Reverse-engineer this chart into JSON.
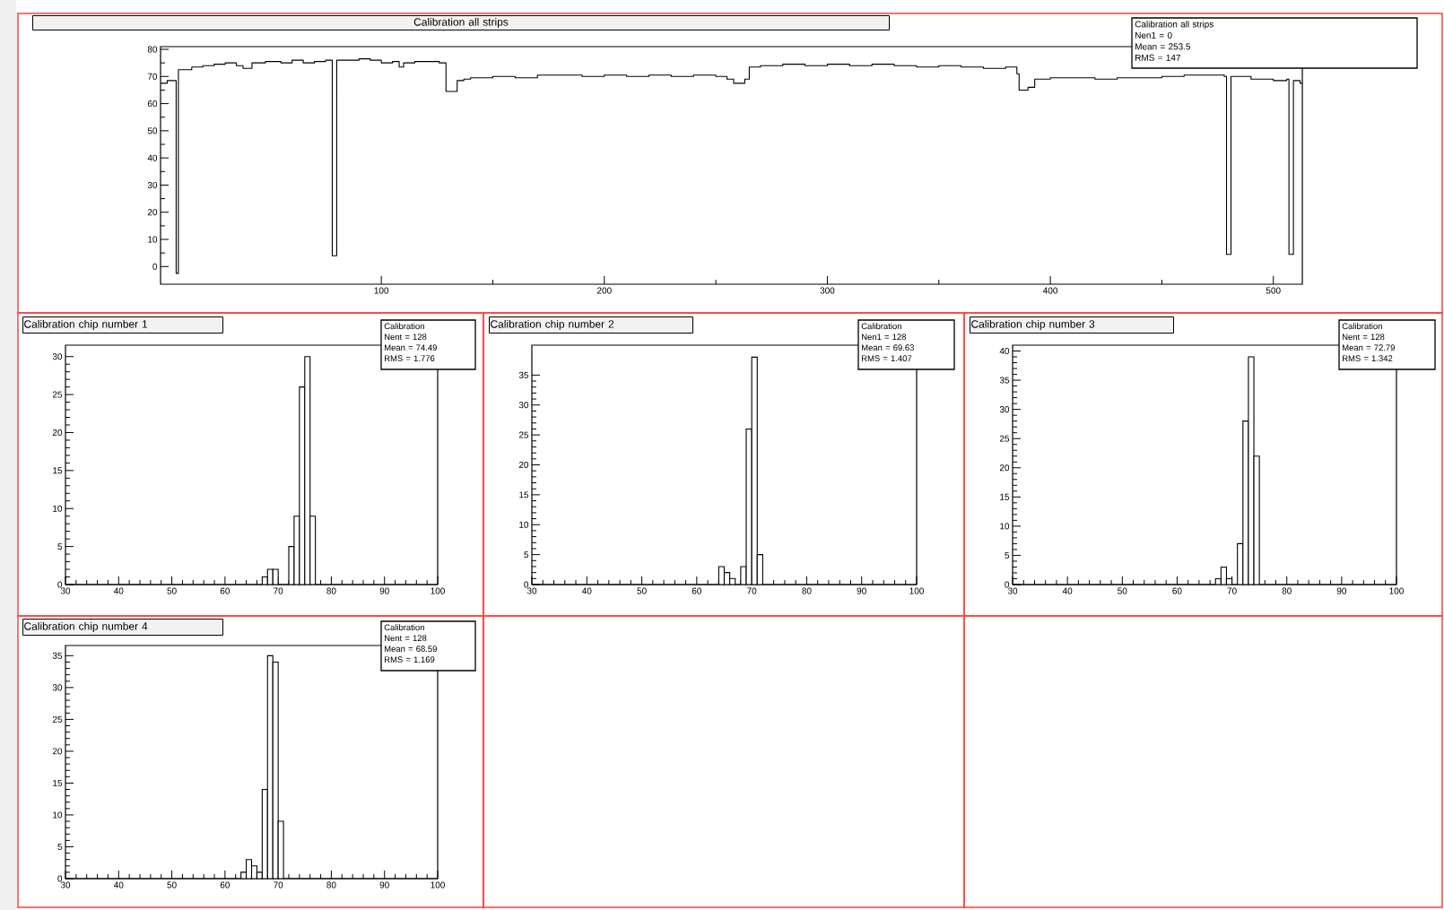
{
  "chart_data": [
    {
      "type": "step",
      "title": "Calibration all strips",
      "color": "#000000",
      "x": [
        1,
        4,
        8,
        9,
        15,
        20,
        25,
        30,
        35,
        38,
        42,
        48,
        55,
        60,
        65,
        70,
        75,
        78,
        80,
        85,
        90,
        95,
        100,
        105,
        108,
        110,
        115,
        120,
        126,
        129,
        134,
        137,
        140,
        150,
        160,
        170,
        180,
        190,
        200,
        210,
        220,
        230,
        240,
        250,
        255,
        258,
        263,
        265,
        270,
        280,
        290,
        300,
        310,
        320,
        330,
        340,
        350,
        360,
        370,
        380,
        385,
        386,
        390,
        393,
        400,
        410,
        420,
        430,
        440,
        450,
        460,
        470,
        478,
        479,
        481,
        490,
        500,
        506,
        507,
        509,
        512
      ],
      "values": [
        67.5,
        68.5,
        -2.5,
        72.5,
        73.5,
        74,
        74.5,
        75,
        74,
        73,
        75,
        75.5,
        75,
        76,
        75,
        75.5,
        76,
        4,
        76,
        76,
        76.5,
        76,
        75,
        75.5,
        73.5,
        75,
        75.5,
        75.5,
        75,
        64.5,
        68.5,
        69,
        69.5,
        70,
        69.5,
        70.5,
        70.5,
        70,
        70.5,
        70,
        70.5,
        70,
        70.5,
        70,
        69,
        67.5,
        69,
        73.5,
        74,
        74.5,
        74,
        74.5,
        74,
        74.5,
        74,
        73.5,
        74,
        73.5,
        73,
        73.5,
        71,
        65,
        66,
        69,
        69.5,
        69.5,
        69,
        69.5,
        69.5,
        70,
        70.5,
        70.5,
        70,
        4.5,
        70,
        69,
        68.5,
        69,
        4.5,
        68.5,
        67.5
      ],
      "xlim": [
        1,
        513
      ],
      "ylim": [
        -6.5,
        81
      ],
      "xticks": [
        100,
        200,
        300,
        400,
        500
      ],
      "yticks": [
        0,
        10,
        20,
        30,
        40,
        50,
        60,
        70,
        80
      ],
      "annotations": [
        "Calibration all strips",
        "Nen1 = 0",
        "Mean =  253.5",
        "RMS  =   147"
      ]
    },
    {
      "type": "histogram",
      "title": "Calibration chip number 1",
      "color": "#000000",
      "bins": [
        30,
        31,
        32,
        33,
        34,
        35,
        36,
        37,
        38,
        39,
        40,
        41,
        42,
        43,
        44,
        45,
        46,
        47,
        48,
        49,
        50,
        51,
        52,
        53,
        54,
        55,
        56,
        57,
        58,
        59,
        60,
        61,
        62,
        63,
        64,
        65,
        66,
        67,
        68,
        69,
        70,
        71,
        72,
        73,
        74,
        75,
        76,
        77,
        78,
        79,
        80,
        81,
        82,
        83,
        84,
        85,
        86,
        87,
        88,
        89,
        90,
        91,
        92,
        93,
        94,
        95,
        96,
        97,
        98,
        99,
        100
      ],
      "values": [
        0,
        0,
        0,
        0,
        0,
        0,
        0,
        0,
        0,
        0,
        0,
        0,
        0,
        0,
        0,
        0,
        0,
        0,
        0,
        0,
        0,
        0,
        0,
        0,
        0,
        0,
        0,
        0,
        0,
        0,
        0,
        0,
        0,
        0,
        0,
        0,
        0,
        1,
        2,
        2,
        0,
        0,
        5,
        9,
        26,
        30,
        9,
        0,
        0,
        0,
        0,
        0,
        0,
        0,
        0,
        0,
        0,
        0,
        0,
        0,
        0,
        0,
        0,
        0,
        0,
        0,
        0,
        0,
        0,
        0
      ],
      "xlim": [
        30,
        100
      ],
      "ylim": [
        0,
        31.5
      ],
      "xticks": [
        30,
        40,
        50,
        60,
        70,
        80,
        90,
        100
      ],
      "yticks": [
        0,
        5,
        10,
        15,
        20,
        25,
        30
      ],
      "annotations": [
        "Calibration",
        "Nent = 128",
        "Mean = 74.49",
        "RMS = 1.776"
      ]
    },
    {
      "type": "histogram",
      "title": "Calibration chip number 2",
      "color": "#000000",
      "bins": [
        30,
        31,
        32,
        33,
        34,
        35,
        36,
        37,
        38,
        39,
        40,
        41,
        42,
        43,
        44,
        45,
        46,
        47,
        48,
        49,
        50,
        51,
        52,
        53,
        54,
        55,
        56,
        57,
        58,
        59,
        60,
        61,
        62,
        63,
        64,
        65,
        66,
        67,
        68,
        69,
        70,
        71,
        72,
        73,
        74,
        75,
        76,
        77,
        78,
        79,
        80,
        81,
        82,
        83,
        84,
        85,
        86,
        87,
        88,
        89,
        90,
        91,
        92,
        93,
        94,
        95,
        96,
        97,
        98,
        99,
        100
      ],
      "values": [
        0,
        0,
        0,
        0,
        0,
        0,
        0,
        0,
        0,
        0,
        0,
        0,
        0,
        0,
        0,
        0,
        0,
        0,
        0,
        0,
        0,
        0,
        0,
        0,
        0,
        0,
        0,
        0,
        0,
        0,
        0,
        0,
        0,
        0,
        3,
        2,
        1,
        0,
        3,
        26,
        38,
        5,
        0,
        0,
        0,
        0,
        0,
        0,
        0,
        0,
        0,
        0,
        0,
        0,
        0,
        0,
        0,
        0,
        0,
        0,
        0,
        0,
        0,
        0,
        0,
        0,
        0,
        0,
        0,
        0
      ],
      "xlim": [
        30,
        100
      ],
      "ylim": [
        0,
        40
      ],
      "xticks": [
        30,
        40,
        50,
        60,
        70,
        80,
        90,
        100
      ],
      "yticks": [
        0,
        5,
        10,
        15,
        20,
        25,
        30,
        35
      ],
      "annotations": [
        "Calibration",
        "Nen1 = 128",
        "Mean =  69.63",
        "RMS  =  1.407"
      ]
    },
    {
      "type": "histogram",
      "title": "Calibration chip number 3",
      "color": "#000000",
      "bins": [
        30,
        31,
        32,
        33,
        34,
        35,
        36,
        37,
        38,
        39,
        40,
        41,
        42,
        43,
        44,
        45,
        46,
        47,
        48,
        49,
        50,
        51,
        52,
        53,
        54,
        55,
        56,
        57,
        58,
        59,
        60,
        61,
        62,
        63,
        64,
        65,
        66,
        67,
        68,
        69,
        70,
        71,
        72,
        73,
        74,
        75,
        76,
        77,
        78,
        79,
        80,
        81,
        82,
        83,
        84,
        85,
        86,
        87,
        88,
        89,
        90,
        91,
        92,
        93,
        94,
        95,
        96,
        97,
        98,
        99,
        100
      ],
      "values": [
        0,
        0,
        0,
        0,
        0,
        0,
        0,
        0,
        0,
        0,
        0,
        0,
        0,
        0,
        0,
        0,
        0,
        0,
        0,
        0,
        0,
        0,
        0,
        0,
        0,
        0,
        0,
        0,
        0,
        0,
        0,
        0,
        0,
        0,
        0,
        0,
        0,
        1,
        3,
        1,
        0,
        7,
        28,
        39,
        22,
        0,
        0,
        0,
        0,
        0,
        0,
        0,
        0,
        0,
        0,
        0,
        0,
        0,
        0,
        0,
        0,
        0,
        0,
        0,
        0,
        0,
        0,
        0,
        0,
        0
      ],
      "xlim": [
        30,
        100
      ],
      "ylim": [
        0,
        41
      ],
      "xticks": [
        30,
        40,
        50,
        60,
        70,
        80,
        90,
        100
      ],
      "yticks": [
        0,
        5,
        10,
        15,
        20,
        25,
        30,
        35,
        40
      ],
      "annotations": [
        "Calibration",
        "Nent = 128",
        "Mean =  72.79",
        "RMS  =  1.342"
      ]
    },
    {
      "type": "histogram",
      "title": "Calibration chip number 4",
      "color": "#000000",
      "bins": [
        30,
        31,
        32,
        33,
        34,
        35,
        36,
        37,
        38,
        39,
        40,
        41,
        42,
        43,
        44,
        45,
        46,
        47,
        48,
        49,
        50,
        51,
        52,
        53,
        54,
        55,
        56,
        57,
        58,
        59,
        60,
        61,
        62,
        63,
        64,
        65,
        66,
        67,
        68,
        69,
        70,
        71,
        72,
        73,
        74,
        75,
        76,
        77,
        78,
        79,
        80,
        81,
        82,
        83,
        84,
        85,
        86,
        87,
        88,
        89,
        90,
        91,
        92,
        93,
        94,
        95,
        96,
        97,
        98,
        99,
        100
      ],
      "values": [
        0,
        0,
        0,
        0,
        0,
        0,
        0,
        0,
        0,
        0,
        0,
        0,
        0,
        0,
        0,
        0,
        0,
        0,
        0,
        0,
        0,
        0,
        0,
        0,
        0,
        0,
        0,
        0,
        0,
        0,
        0,
        0,
        0,
        1,
        3,
        2,
        1,
        14,
        35,
        34,
        9,
        0,
        0,
        0,
        0,
        0,
        0,
        0,
        0,
        0,
        0,
        0,
        0,
        0,
        0,
        0,
        0,
        0,
        0,
        0,
        0,
        0,
        0,
        0,
        0,
        0,
        0,
        0,
        0,
        0
      ],
      "xlim": [
        30,
        100
      ],
      "ylim": [
        0,
        36.6
      ],
      "xticks": [
        30,
        40,
        50,
        60,
        70,
        80,
        90,
        100
      ],
      "yticks": [
        0,
        5,
        10,
        15,
        20,
        25,
        30,
        35
      ],
      "annotations": [
        "Calibration",
        "Nent = 128",
        "Mean =  68.59",
        "RMS  =  1.169"
      ]
    }
  ]
}
